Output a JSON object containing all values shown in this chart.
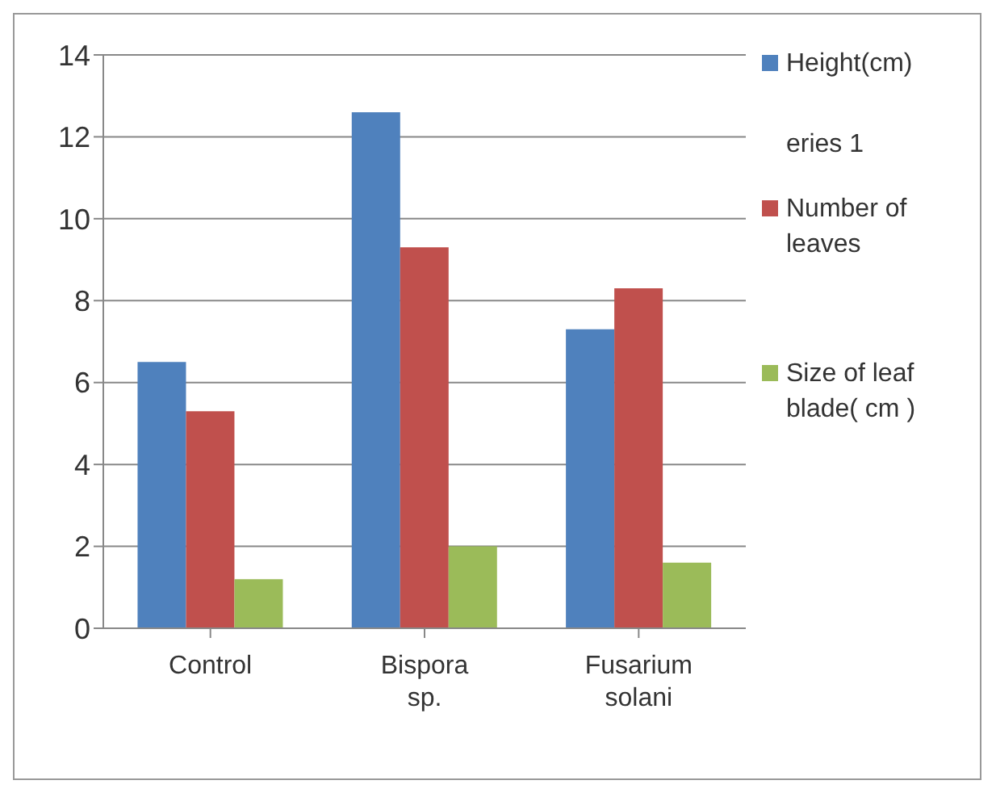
{
  "chart_data": {
    "type": "bar",
    "categories": [
      "Control",
      "Bispora sp.",
      "Fusarium solani"
    ],
    "series": [
      {
        "name": "Height(cm)",
        "color": "#4f81bd",
        "values": [
          6.5,
          12.6,
          7.3
        ]
      },
      {
        "name": "Number of leaves",
        "color": "#c0504d",
        "values": [
          5.3,
          9.3,
          8.3
        ]
      },
      {
        "name": "Size of leaf blade( cm )",
        "color": "#9bbb59",
        "values": [
          1.2,
          2.0,
          1.6
        ]
      }
    ],
    "ylim": [
      0,
      14
    ],
    "yticks": [
      0,
      2,
      4,
      6,
      8,
      10,
      12,
      14
    ],
    "grid": "y",
    "legend": "right",
    "annotations": [
      "eries 1"
    ]
  }
}
